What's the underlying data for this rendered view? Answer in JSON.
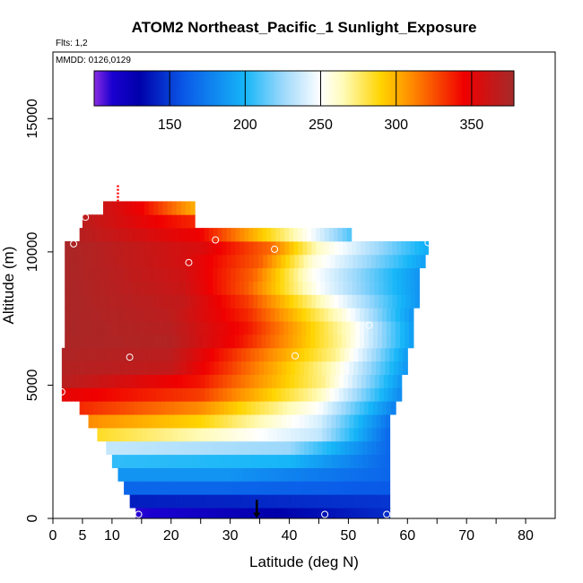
{
  "chart_data": {
    "type": "heatmap",
    "title": "ATOM2 Northeast_Pacific_1 Sunlight_Exposure",
    "flights_label": "Flts: 1,2",
    "dates_label": "MMDD: 0126,0129",
    "xlabel": "Latitude (deg N)",
    "ylabel": "Altitude (m)",
    "xlim": [
      0,
      85
    ],
    "ylim": [
      0,
      17500
    ],
    "xticks": [
      0,
      5,
      10,
      20,
      30,
      40,
      50,
      60,
      70,
      80
    ],
    "yticks": [
      0,
      5000,
      10000,
      15000
    ],
    "colorbar": {
      "range": [
        100,
        378
      ],
      "ticks": [
        150,
        200,
        250,
        300,
        350
      ],
      "stops": [
        {
          "v": 100,
          "c": "#8a2be2"
        },
        {
          "v": 112,
          "c": "#1a00d0"
        },
        {
          "v": 130,
          "c": "#0000aa"
        },
        {
          "v": 160,
          "c": "#0a5ae8"
        },
        {
          "v": 200,
          "c": "#16b6f8"
        },
        {
          "v": 225,
          "c": "#9cd8fb"
        },
        {
          "v": 250,
          "c": "#ffffff"
        },
        {
          "v": 265,
          "c": "#fffbb8"
        },
        {
          "v": 290,
          "c": "#ffd400"
        },
        {
          "v": 310,
          "c": "#ff8c00"
        },
        {
          "v": 345,
          "c": "#f00000"
        },
        {
          "v": 378,
          "c": "#a52a2a"
        }
      ]
    },
    "layers": [
      {
        "alt_bottom": 0,
        "alt_top": 400,
        "lat_start": 14,
        "lat_end": 57,
        "value_profile": [
          [
            14,
            110
          ],
          [
            25,
            118
          ],
          [
            35,
            128
          ],
          [
            45,
            135
          ],
          [
            57,
            145
          ]
        ]
      },
      {
        "alt_bottom": 400,
        "alt_top": 900,
        "lat_start": 13,
        "lat_end": 57,
        "value_profile": [
          [
            13,
            140
          ],
          [
            30,
            142
          ],
          [
            57,
            148
          ]
        ]
      },
      {
        "alt_bottom": 900,
        "alt_top": 1400,
        "lat_start": 12,
        "lat_end": 57,
        "value_profile": [
          [
            12,
            165
          ],
          [
            30,
            165
          ],
          [
            57,
            160
          ]
        ]
      },
      {
        "alt_bottom": 1400,
        "alt_top": 1900,
        "lat_start": 11,
        "lat_end": 57,
        "value_profile": [
          [
            11,
            185
          ],
          [
            30,
            185
          ],
          [
            57,
            165
          ]
        ]
      },
      {
        "alt_bottom": 1900,
        "alt_top": 2400,
        "lat_start": 10,
        "lat_end": 57,
        "value_profile": [
          [
            10,
            205
          ],
          [
            40,
            200
          ],
          [
            57,
            165
          ]
        ]
      },
      {
        "alt_bottom": 2400,
        "alt_top": 2900,
        "lat_start": 9,
        "lat_end": 57,
        "value_profile": [
          [
            9,
            235
          ],
          [
            40,
            225
          ],
          [
            57,
            165
          ]
        ]
      },
      {
        "alt_bottom": 2900,
        "alt_top": 3400,
        "lat_start": 7.5,
        "lat_end": 57,
        "value_profile": [
          [
            7.5,
            285
          ],
          [
            25,
            265
          ],
          [
            45,
            235
          ],
          [
            57,
            165
          ]
        ]
      },
      {
        "alt_bottom": 3400,
        "alt_top": 3900,
        "lat_start": 6,
        "lat_end": 57,
        "value_profile": [
          [
            6,
            310
          ],
          [
            25,
            290
          ],
          [
            45,
            240
          ],
          [
            57,
            170
          ]
        ]
      },
      {
        "alt_bottom": 3900,
        "alt_top": 4400,
        "lat_start": 4.5,
        "lat_end": 58,
        "value_profile": [
          [
            4.5,
            335
          ],
          [
            25,
            310
          ],
          [
            45,
            250
          ],
          [
            58,
            175
          ]
        ]
      },
      {
        "alt_bottom": 4400,
        "alt_top": 4900,
        "lat_start": 1.5,
        "lat_end": 59,
        "value_profile": [
          [
            1.5,
            350
          ],
          [
            25,
            330
          ],
          [
            45,
            265
          ],
          [
            59,
            180
          ]
        ]
      },
      {
        "alt_bottom": 4900,
        "alt_top": 5400,
        "lat_start": 1.5,
        "lat_end": 59,
        "value_profile": [
          [
            1.5,
            370
          ],
          [
            25,
            340
          ],
          [
            46,
            270
          ],
          [
            59,
            185
          ]
        ]
      },
      {
        "alt_bottom": 5400,
        "alt_top": 5900,
        "lat_start": 1.5,
        "lat_end": 60,
        "value_profile": [
          [
            1.5,
            372
          ],
          [
            20,
            365
          ],
          [
            30,
            330
          ],
          [
            47,
            265
          ],
          [
            60,
            185
          ]
        ]
      },
      {
        "alt_bottom": 5900,
        "alt_top": 6400,
        "lat_start": 1.5,
        "lat_end": 60,
        "value_profile": [
          [
            1.5,
            374
          ],
          [
            20,
            368
          ],
          [
            30,
            335
          ],
          [
            48,
            270
          ],
          [
            60,
            188
          ]
        ]
      },
      {
        "alt_bottom": 6400,
        "alt_top": 6900,
        "lat_start": 2,
        "lat_end": 61,
        "value_profile": [
          [
            2,
            375
          ],
          [
            20,
            372
          ],
          [
            32,
            340
          ],
          [
            49,
            268
          ],
          [
            61,
            188
          ]
        ]
      },
      {
        "alt_bottom": 6900,
        "alt_top": 7400,
        "lat_start": 2,
        "lat_end": 61,
        "value_profile": [
          [
            2,
            376
          ],
          [
            20,
            370
          ],
          [
            33,
            340
          ],
          [
            50,
            262
          ],
          [
            61,
            188
          ]
        ]
      },
      {
        "alt_bottom": 7400,
        "alt_top": 7900,
        "lat_start": 2,
        "lat_end": 61,
        "value_profile": [
          [
            2,
            376
          ],
          [
            20,
            368
          ],
          [
            33,
            335
          ],
          [
            49,
            258
          ],
          [
            61,
            185
          ]
        ]
      },
      {
        "alt_bottom": 7900,
        "alt_top": 8400,
        "lat_start": 2,
        "lat_end": 62,
        "value_profile": [
          [
            2,
            376
          ],
          [
            22,
            365
          ],
          [
            33,
            330
          ],
          [
            47,
            255
          ],
          [
            62,
            185
          ]
        ]
      },
      {
        "alt_bottom": 8400,
        "alt_top": 8900,
        "lat_start": 2,
        "lat_end": 62,
        "value_profile": [
          [
            2,
            376
          ],
          [
            22,
            362
          ],
          [
            33,
            322
          ],
          [
            45,
            250
          ],
          [
            62,
            185
          ]
        ]
      },
      {
        "alt_bottom": 8900,
        "alt_top": 9400,
        "lat_start": 2,
        "lat_end": 62,
        "value_profile": [
          [
            2,
            376
          ],
          [
            22,
            360
          ],
          [
            34,
            320
          ],
          [
            44,
            252
          ],
          [
            62,
            185
          ]
        ]
      },
      {
        "alt_bottom": 9400,
        "alt_top": 9900,
        "lat_start": 2,
        "lat_end": 63,
        "value_profile": [
          [
            2,
            376
          ],
          [
            22,
            358
          ],
          [
            35,
            322
          ],
          [
            44,
            258
          ],
          [
            63,
            190
          ]
        ]
      },
      {
        "alt_bottom": 9900,
        "alt_top": 10400,
        "lat_start": 2,
        "lat_end": 63.5,
        "value_profile": [
          [
            2,
            376
          ],
          [
            25,
            355
          ],
          [
            37,
            318
          ],
          [
            45,
            262
          ],
          [
            63.5,
            195
          ]
        ]
      },
      {
        "alt_bottom": 10400,
        "alt_top": 10900,
        "lat_start": 4.5,
        "lat_end": 50.5,
        "value_profile": [
          [
            4.5,
            370
          ],
          [
            25,
            345
          ],
          [
            40,
            270
          ],
          [
            50.5,
            210
          ]
        ]
      },
      {
        "alt_bottom": 10900,
        "alt_top": 11400,
        "lat_start": 5,
        "lat_end": 24,
        "value_profile": [
          [
            5,
            368
          ],
          [
            15,
            350
          ],
          [
            24,
            335
          ]
        ]
      },
      {
        "alt_bottom": 11400,
        "alt_top": 11900,
        "lat_start": 8.5,
        "lat_end": 24,
        "value_profile": [
          [
            8.5,
            362
          ],
          [
            15,
            345
          ],
          [
            24,
            300
          ]
        ]
      }
    ],
    "sample_points": [
      {
        "lat": 14.5,
        "alt": 150
      },
      {
        "lat": 46,
        "alt": 150
      },
      {
        "lat": 56.5,
        "alt": 150
      },
      {
        "lat": 1.5,
        "alt": 4750
      },
      {
        "lat": 13,
        "alt": 6050
      },
      {
        "lat": 41,
        "alt": 6100
      },
      {
        "lat": 53.5,
        "alt": 7250
      },
      {
        "lat": 23,
        "alt": 9600
      },
      {
        "lat": 37.5,
        "alt": 10100
      },
      {
        "lat": 3.5,
        "alt": 10300
      },
      {
        "lat": 27.5,
        "alt": 10450
      },
      {
        "lat": 63.5,
        "alt": 10350
      },
      {
        "lat": 5.5,
        "alt": 11300
      }
    ],
    "arrow_marker": {
      "lat": 34.5,
      "alt_top": 700,
      "alt_bottom": 50,
      "color": "#000000"
    },
    "red_marker": {
      "lat": 11,
      "alt_bottom": 11900,
      "alt_top": 12500,
      "color": "#ff0000"
    }
  }
}
